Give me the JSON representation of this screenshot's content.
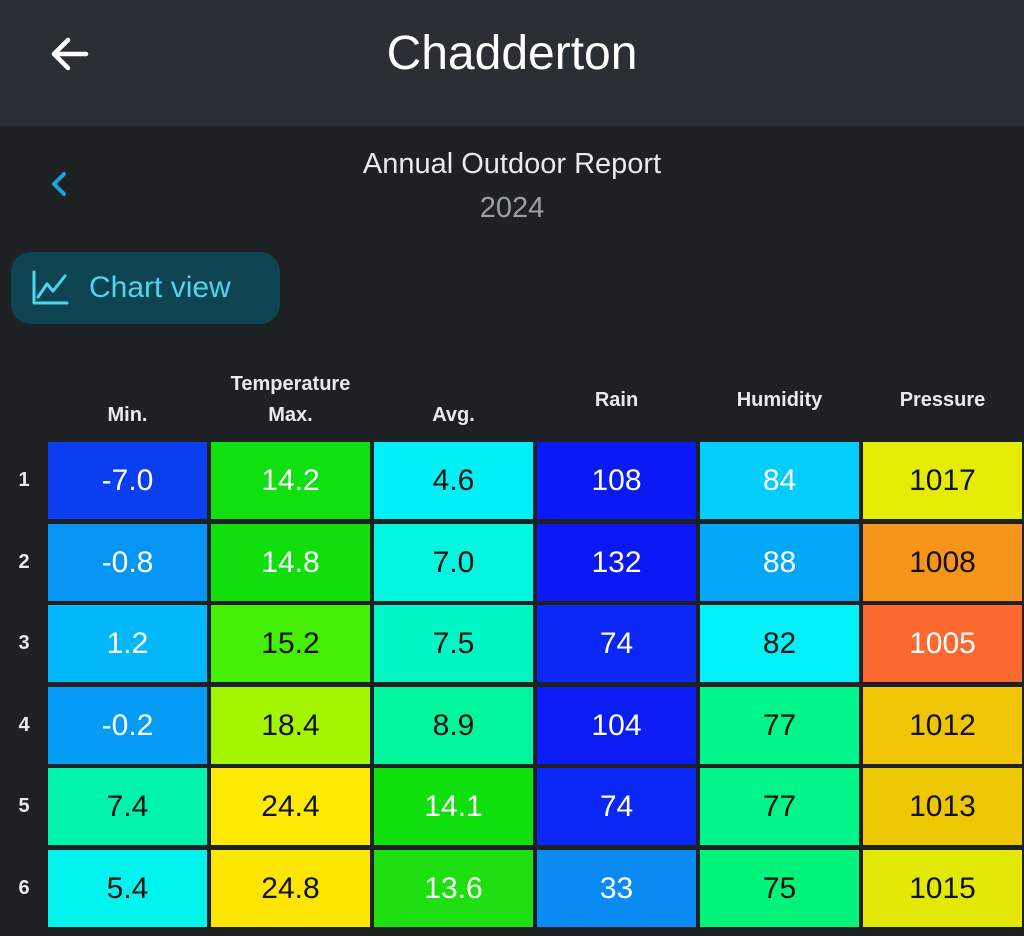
{
  "appbar": {
    "title": "Chadderton",
    "back_icon": "arrow-left-icon"
  },
  "report": {
    "title": "Annual Outdoor Report",
    "year": "2024",
    "prev_icon": "chevron-left-icon"
  },
  "chart_view_button": {
    "label": "Chart view",
    "icon": "line-chart-icon",
    "accent": "#4fd6ef"
  },
  "table": {
    "group_label": "Temperature",
    "columns": [
      "Min.",
      "Max.",
      "Avg.",
      "Rain",
      "Humidity",
      "Pressure"
    ],
    "rows": [
      {
        "label": "1",
        "cells": [
          {
            "value": "-7.0",
            "color": "#0a3ef0"
          },
          {
            "value": "14.2",
            "color": "#10e010"
          },
          {
            "value": "4.6",
            "color": "#00f0f6"
          },
          {
            "value": "108",
            "color": "#0a1af5"
          },
          {
            "value": "84",
            "color": "#02cdfb"
          },
          {
            "value": "1017",
            "color": "#e3ec02"
          }
        ]
      },
      {
        "label": "2",
        "cells": [
          {
            "value": "-0.8",
            "color": "#0596f5"
          },
          {
            "value": "14.8",
            "color": "#10df0c"
          },
          {
            "value": "7.0",
            "color": "#00f6de"
          },
          {
            "value": "132",
            "color": "#0b18f4"
          },
          {
            "value": "88",
            "color": "#02a8f6"
          },
          {
            "value": "1008",
            "color": "#f7941a"
          }
        ]
      },
      {
        "label": "3",
        "cells": [
          {
            "value": "1.2",
            "color": "#02b8fa"
          },
          {
            "value": "15.2",
            "color": "#44ef05"
          },
          {
            "value": "7.5",
            "color": "#00f6c4"
          },
          {
            "value": "74",
            "color": "#0a27f6"
          },
          {
            "value": "82",
            "color": "#01f1f6"
          },
          {
            "value": "1005",
            "color": "#fb6830"
          }
        ]
      },
      {
        "label": "4",
        "cells": [
          {
            "value": "-0.2",
            "color": "#059cf5"
          },
          {
            "value": "18.4",
            "color": "#a4f502"
          },
          {
            "value": "8.9",
            "color": "#00f59c"
          },
          {
            "value": "104",
            "color": "#0b1df4"
          },
          {
            "value": "77",
            "color": "#02f58b"
          },
          {
            "value": "1012",
            "color": "#f0c505"
          }
        ]
      },
      {
        "label": "5",
        "cells": [
          {
            "value": "7.4",
            "color": "#00f3aa"
          },
          {
            "value": "24.4",
            "color": "#fdea02"
          },
          {
            "value": "14.1",
            "color": "#10df0e"
          },
          {
            "value": "74",
            "color": "#0a27f6"
          },
          {
            "value": "77",
            "color": "#02f58b"
          },
          {
            "value": "1013",
            "color": "#eec703"
          }
        ]
      },
      {
        "label": "6",
        "cells": [
          {
            "value": "5.4",
            "color": "#00f3ec"
          },
          {
            "value": "24.8",
            "color": "#fde502"
          },
          {
            "value": "13.6",
            "color": "#1ee010"
          },
          {
            "value": "33",
            "color": "#0a8af2"
          },
          {
            "value": "75",
            "color": "#02f37a"
          },
          {
            "value": "1015",
            "color": "#e3e904"
          }
        ]
      }
    ]
  }
}
